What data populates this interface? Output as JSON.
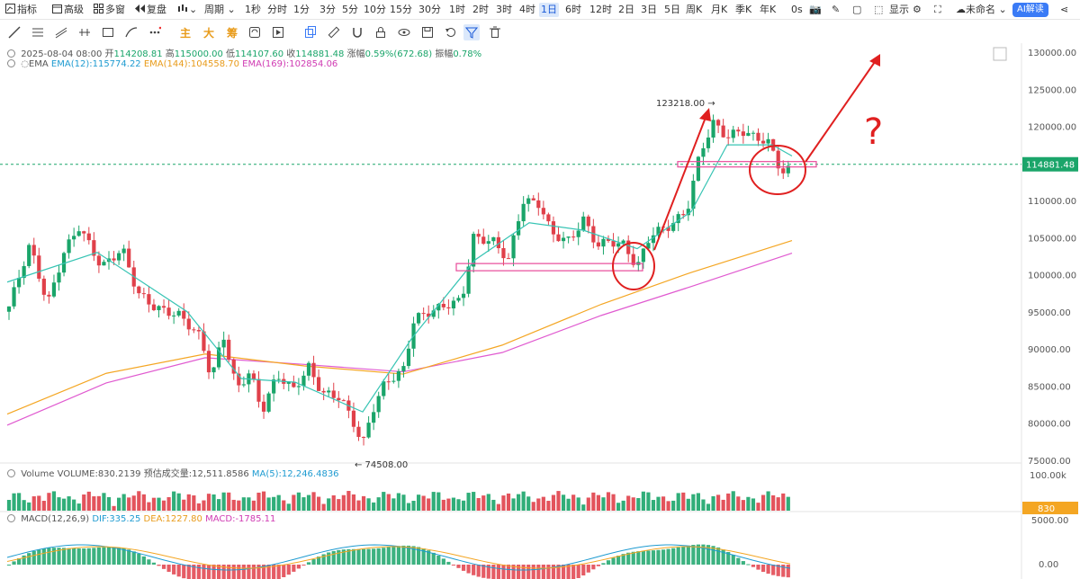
{
  "toolbar": {
    "indicator": "指标",
    "advanced": "高级",
    "multi_window": "多窗",
    "replay": "复盘",
    "period": "周期",
    "intervals": [
      "1秒",
      "分时",
      "1分",
      "3分",
      "5分",
      "10分",
      "15分",
      "30分",
      "1时",
      "2时",
      "3时",
      "4时",
      "1日",
      "6时",
      "12时",
      "2日",
      "3日",
      "5日",
      "周K",
      "月K",
      "季K",
      "年K"
    ],
    "selected_interval": "1日",
    "countdown": "0s",
    "display": "显示",
    "unnamed": "未命名",
    "ai": "AI解读"
  },
  "tools2": {
    "main": "主",
    "big": "大",
    "chip": "筹"
  },
  "header": {
    "date": "2025-08-04 08:00",
    "open_label": "开",
    "open": "114208.81",
    "high_label": "高",
    "high": "115000.00",
    "low_label": "低",
    "low": "114107.60",
    "close_label": "收",
    "close": "114881.48",
    "change_label": "涨幅",
    "change": "0.59%(672.68)",
    "amp_label": "振幅",
    "amp": "0.78%",
    "ema_label": "EMA",
    "ema12": "EMA(12):115774.22",
    "ema144": "EMA(144):104558.70",
    "ema169": "EMA(169):102854.06"
  },
  "volume_panel": {
    "label": "Volume",
    "volume": "VOLUME:830.2139",
    "est_label": "预估成交量:12,511.8586",
    "ma5": "MA(5):12,246.4836",
    "axis_top": "100.00k",
    "current_tag": "830"
  },
  "macd_panel": {
    "label": "MACD(12,26,9)",
    "dif": "DIF:335.25",
    "dea": "DEA:1227.80",
    "macd": "MACD:-1785.11",
    "axis_top": "5000.00",
    "axis_zero": "0.00"
  },
  "price_axis": [
    "130000.00",
    "125000.00",
    "120000.00",
    "115000.00",
    "110000.00",
    "105000.00",
    "100000.00",
    "95000.00",
    "90000.00",
    "85000.00",
    "80000.00",
    "75000.00"
  ],
  "last_price_tag": "114881.48",
  "markers": {
    "high": "123218.00",
    "low": "74508.00"
  },
  "annotation": {
    "question": "?"
  },
  "colors": {
    "up": "#1aa56a",
    "down": "#e0404a",
    "ema12": "#37c4b4",
    "ema144": "#f4a623",
    "ema169": "#e05ad0",
    "accent": "#1a5ad8",
    "annot": "#e02020"
  },
  "chart_data": {
    "type": "candlestick",
    "price_range": [
      72500,
      131500
    ],
    "points": [
      {
        "x": 0,
        "y": 95000
      },
      {
        "x": 25,
        "y": 104000
      },
      {
        "x": 45,
        "y": 96000
      },
      {
        "x": 63,
        "y": 103000
      },
      {
        "x": 80,
        "y": 106500
      },
      {
        "x": 105,
        "y": 101000
      },
      {
        "x": 128,
        "y": 103500
      },
      {
        "x": 145,
        "y": 97500
      },
      {
        "x": 165,
        "y": 95500
      },
      {
        "x": 192,
        "y": 94500
      },
      {
        "x": 215,
        "y": 91500
      },
      {
        "x": 227,
        "y": 86000
      },
      {
        "x": 240,
        "y": 92000
      },
      {
        "x": 255,
        "y": 84500
      },
      {
        "x": 270,
        "y": 87000
      },
      {
        "x": 283,
        "y": 81500
      },
      {
        "x": 300,
        "y": 86500
      },
      {
        "x": 318,
        "y": 84500
      },
      {
        "x": 335,
        "y": 87500
      },
      {
        "x": 350,
        "y": 84000
      },
      {
        "x": 370,
        "y": 83500
      },
      {
        "x": 385,
        "y": 80000
      },
      {
        "x": 395,
        "y": 77000
      },
      {
        "x": 405,
        "y": 81500
      },
      {
        "x": 420,
        "y": 85500
      },
      {
        "x": 440,
        "y": 87000
      },
      {
        "x": 452,
        "y": 94000
      },
      {
        "x": 470,
        "y": 95000
      },
      {
        "x": 490,
        "y": 96000
      },
      {
        "x": 505,
        "y": 96500
      },
      {
        "x": 518,
        "y": 105000
      },
      {
        "x": 540,
        "y": 104500
      },
      {
        "x": 557,
        "y": 102000
      },
      {
        "x": 573,
        "y": 110000
      },
      {
        "x": 592,
        "y": 109500
      },
      {
        "x": 605,
        "y": 105500
      },
      {
        "x": 625,
        "y": 104500
      },
      {
        "x": 640,
        "y": 107500
      },
      {
        "x": 655,
        "y": 104000
      },
      {
        "x": 670,
        "y": 104500
      },
      {
        "x": 685,
        "y": 104000
      },
      {
        "x": 700,
        "y": 101000
      },
      {
        "x": 715,
        "y": 105500
      },
      {
        "x": 735,
        "y": 106500
      },
      {
        "x": 755,
        "y": 108500
      },
      {
        "x": 770,
        "y": 116500
      },
      {
        "x": 785,
        "y": 120500
      },
      {
        "x": 800,
        "y": 118500
      },
      {
        "x": 815,
        "y": 119500
      },
      {
        "x": 830,
        "y": 118500
      },
      {
        "x": 845,
        "y": 118000
      },
      {
        "x": 858,
        "y": 114500
      },
      {
        "x": 865,
        "y": 113500
      },
      {
        "x": 872,
        "y": 115000
      }
    ],
    "ema12": [
      {
        "x": 0,
        "y": 99000
      },
      {
        "x": 100,
        "y": 103000
      },
      {
        "x": 200,
        "y": 95000
      },
      {
        "x": 260,
        "y": 86000
      },
      {
        "x": 320,
        "y": 85500
      },
      {
        "x": 395,
        "y": 81500
      },
      {
        "x": 450,
        "y": 91500
      },
      {
        "x": 520,
        "y": 102000
      },
      {
        "x": 580,
        "y": 107000
      },
      {
        "x": 640,
        "y": 106000
      },
      {
        "x": 700,
        "y": 103500
      },
      {
        "x": 760,
        "y": 108500
      },
      {
        "x": 800,
        "y": 117500
      },
      {
        "x": 850,
        "y": 117500
      },
      {
        "x": 872,
        "y": 116000
      }
    ],
    "ema144": [
      {
        "x": 0,
        "y": 81200
      },
      {
        "x": 110,
        "y": 86700
      },
      {
        "x": 220,
        "y": 89300
      },
      {
        "x": 330,
        "y": 87700
      },
      {
        "x": 440,
        "y": 86600
      },
      {
        "x": 550,
        "y": 90500
      },
      {
        "x": 660,
        "y": 96000
      },
      {
        "x": 760,
        "y": 100300
      },
      {
        "x": 872,
        "y": 104600
      }
    ],
    "ema169": [
      {
        "x": 0,
        "y": 79700
      },
      {
        "x": 110,
        "y": 85400
      },
      {
        "x": 220,
        "y": 88800
      },
      {
        "x": 330,
        "y": 87900
      },
      {
        "x": 440,
        "y": 86900
      },
      {
        "x": 550,
        "y": 89500
      },
      {
        "x": 660,
        "y": 94500
      },
      {
        "x": 760,
        "y": 98400
      },
      {
        "x": 872,
        "y": 102900
      }
    ]
  }
}
